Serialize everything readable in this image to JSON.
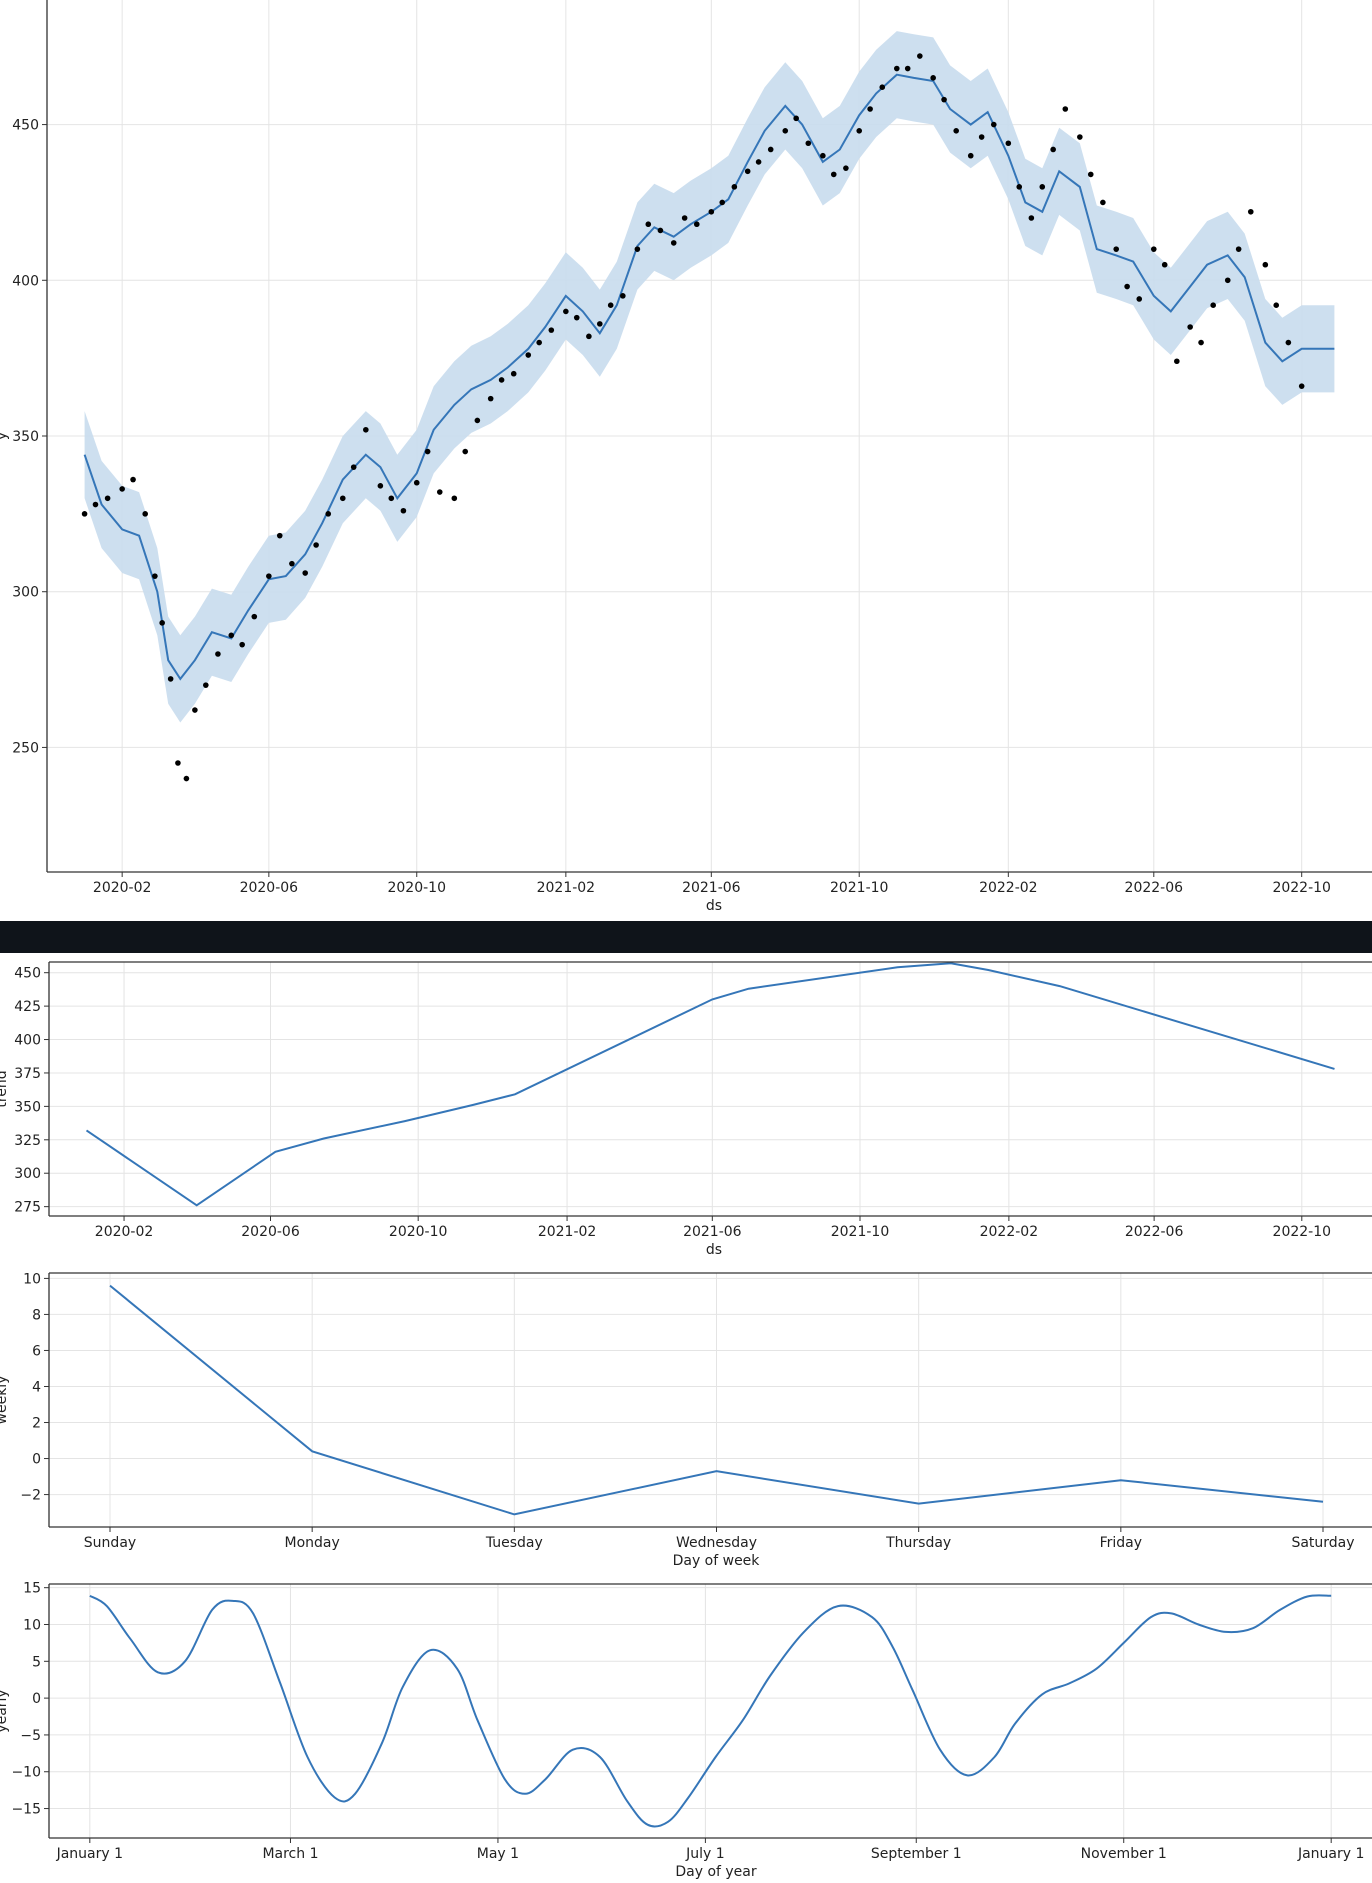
{
  "colors": {
    "line": "#3576b8",
    "band": "#c8dced",
    "points": "#000000",
    "grid": "#e4e4e4",
    "axis": "#333333",
    "divider": "#0f141a"
  },
  "chart_data": [
    {
      "id": "forecast",
      "type": "scatter+line",
      "title": "",
      "xlabel": "ds",
      "ylabel": "y",
      "x_ticks": [
        "2020-02",
        "2020-06",
        "2020-10",
        "2021-02",
        "2021-06",
        "2021-10",
        "2022-02",
        "2022-06",
        "2022-10"
      ],
      "y_ticks": [
        250,
        300,
        350,
        400,
        450
      ],
      "xlim": [
        "2019-12-01",
        "2022-11-28"
      ],
      "ylim": [
        210,
        490
      ],
      "grid": true,
      "series": [
        {
          "kind": "forecast_yhat",
          "x": [
            "2020-01-01",
            "2020-01-15",
            "2020-02-01",
            "2020-02-15",
            "2020-03-01",
            "2020-03-10",
            "2020-03-20",
            "2020-04-01",
            "2020-04-15",
            "2020-05-01",
            "2020-05-15",
            "2020-06-01",
            "2020-06-15",
            "2020-07-01",
            "2020-07-15",
            "2020-08-01",
            "2020-08-20",
            "2020-09-01",
            "2020-09-15",
            "2020-10-01",
            "2020-10-15",
            "2020-11-01",
            "2020-11-15",
            "2020-12-01",
            "2020-12-15",
            "2021-01-01",
            "2021-01-15",
            "2021-02-01",
            "2021-02-15",
            "2021-03-01",
            "2021-03-15",
            "2021-04-01",
            "2021-04-15",
            "2021-05-01",
            "2021-05-15",
            "2021-06-01",
            "2021-06-15",
            "2021-07-01",
            "2021-07-15",
            "2021-08-01",
            "2021-08-15",
            "2021-09-01",
            "2021-09-15",
            "2021-10-01",
            "2021-10-15",
            "2021-11-01",
            "2021-11-15",
            "2021-12-01",
            "2021-12-15",
            "2022-01-01",
            "2022-01-15",
            "2022-02-01",
            "2022-02-15",
            "2022-03-01",
            "2022-03-15",
            "2022-04-01",
            "2022-04-15",
            "2022-05-01",
            "2022-05-15",
            "2022-06-01",
            "2022-06-15",
            "2022-07-01",
            "2022-07-15",
            "2022-08-01",
            "2022-08-15",
            "2022-09-01",
            "2022-09-15",
            "2022-10-01",
            "2022-10-15",
            "2022-10-28"
          ],
          "y": [
            344,
            328,
            320,
            318,
            300,
            278,
            272,
            278,
            287,
            285,
            294,
            304,
            305,
            312,
            322,
            336,
            344,
            340,
            330,
            338,
            352,
            360,
            365,
            368,
            372,
            378,
            385,
            395,
            390,
            383,
            392,
            411,
            417,
            414,
            418,
            422,
            426,
            438,
            448,
            456,
            450,
            438,
            442,
            453,
            460,
            466,
            465,
            464,
            455,
            450,
            454,
            440,
            425,
            422,
            435,
            430,
            410,
            408,
            406,
            395,
            390,
            398,
            405,
            408,
            401,
            380,
            374,
            378,
            378,
            378
          ]
        },
        {
          "kind": "uncertainty_band",
          "x": [
            "2020-01-01",
            "2020-01-15",
            "2020-02-01",
            "2020-02-15",
            "2020-03-01",
            "2020-03-10",
            "2020-03-20",
            "2020-04-01",
            "2020-04-15",
            "2020-05-01",
            "2020-05-15",
            "2020-06-01",
            "2020-06-15",
            "2020-07-01",
            "2020-07-15",
            "2020-08-01",
            "2020-08-20",
            "2020-09-01",
            "2020-09-15",
            "2020-10-01",
            "2020-10-15",
            "2020-11-01",
            "2020-11-15",
            "2020-12-01",
            "2020-12-15",
            "2021-01-01",
            "2021-01-15",
            "2021-02-01",
            "2021-02-15",
            "2021-03-01",
            "2021-03-15",
            "2021-04-01",
            "2021-04-15",
            "2021-05-01",
            "2021-05-15",
            "2021-06-01",
            "2021-06-15",
            "2021-07-01",
            "2021-07-15",
            "2021-08-01",
            "2021-08-15",
            "2021-09-01",
            "2021-09-15",
            "2021-10-01",
            "2021-10-15",
            "2021-11-01",
            "2021-11-15",
            "2021-12-01",
            "2021-12-15",
            "2022-01-01",
            "2022-01-15",
            "2022-02-01",
            "2022-02-15",
            "2022-03-01",
            "2022-03-15",
            "2022-04-01",
            "2022-04-15",
            "2022-05-01",
            "2022-05-15",
            "2022-06-01",
            "2022-06-15",
            "2022-07-01",
            "2022-07-15",
            "2022-08-01",
            "2022-08-15",
            "2022-09-01",
            "2022-09-15",
            "2022-10-01",
            "2022-10-15",
            "2022-10-28"
          ],
          "lower": [
            330,
            314,
            306,
            304,
            286,
            264,
            258,
            264,
            273,
            271,
            280,
            290,
            291,
            298,
            308,
            322,
            330,
            326,
            316,
            324,
            338,
            346,
            351,
            354,
            358,
            364,
            371,
            381,
            376,
            369,
            378,
            397,
            403,
            400,
            404,
            408,
            412,
            424,
            434,
            442,
            436,
            424,
            428,
            439,
            446,
            452,
            451,
            450,
            441,
            436,
            440,
            426,
            411,
            408,
            421,
            416,
            396,
            394,
            392,
            381,
            376,
            384,
            391,
            394,
            387,
            366,
            360,
            364,
            364,
            364
          ],
          "upper": [
            358,
            342,
            334,
            332,
            314,
            292,
            286,
            292,
            301,
            299,
            308,
            318,
            319,
            326,
            336,
            350,
            358,
            354,
            344,
            352,
            366,
            374,
            379,
            382,
            386,
            392,
            399,
            409,
            404,
            397,
            406,
            425,
            431,
            428,
            432,
            436,
            440,
            452,
            462,
            470,
            464,
            452,
            456,
            467,
            474,
            480,
            479,
            478,
            469,
            464,
            468,
            454,
            439,
            436,
            449,
            444,
            424,
            422,
            420,
            409,
            404,
            412,
            419,
            422,
            415,
            394,
            388,
            392,
            392,
            392
          ]
        },
        {
          "kind": "observed_points",
          "note_free": true,
          "x": [
            "2020-01-01",
            "2020-01-10",
            "2020-01-20",
            "2020-02-01",
            "2020-02-10",
            "2020-02-20",
            "2020-02-28",
            "2020-03-05",
            "2020-03-12",
            "2020-03-18",
            "2020-03-25",
            "2020-04-01",
            "2020-04-10",
            "2020-04-20",
            "2020-05-01",
            "2020-05-10",
            "2020-05-20",
            "2020-06-01",
            "2020-06-10",
            "2020-06-20",
            "2020-07-01",
            "2020-07-10",
            "2020-07-20",
            "2020-08-01",
            "2020-08-10",
            "2020-08-20",
            "2020-09-01",
            "2020-09-10",
            "2020-09-20",
            "2020-10-01",
            "2020-10-10",
            "2020-10-20",
            "2020-11-01",
            "2020-11-10",
            "2020-11-20",
            "2020-12-01",
            "2020-12-10",
            "2020-12-20",
            "2021-01-01",
            "2021-01-10",
            "2021-01-20",
            "2021-02-01",
            "2021-02-10",
            "2021-02-20",
            "2021-03-01",
            "2021-03-10",
            "2021-03-20",
            "2021-04-01",
            "2021-04-10",
            "2021-04-20",
            "2021-05-01",
            "2021-05-10",
            "2021-05-20",
            "2021-06-01",
            "2021-06-10",
            "2021-06-20",
            "2021-07-01",
            "2021-07-10",
            "2021-07-20",
            "2021-08-01",
            "2021-08-10",
            "2021-08-20",
            "2021-09-01",
            "2021-09-10",
            "2021-09-20",
            "2021-10-01",
            "2021-10-10",
            "2021-10-20",
            "2021-11-01",
            "2021-11-10",
            "2021-11-20",
            "2021-12-01",
            "2021-12-10",
            "2021-12-20",
            "2022-01-01",
            "2022-01-10",
            "2022-01-20",
            "2022-02-01",
            "2022-02-10",
            "2022-02-20",
            "2022-03-01",
            "2022-03-10",
            "2022-03-20",
            "2022-04-01",
            "2022-04-10",
            "2022-04-20",
            "2022-05-01",
            "2022-05-10",
            "2022-05-20",
            "2022-06-01",
            "2022-06-10",
            "2022-06-20",
            "2022-07-01",
            "2022-07-10",
            "2022-07-20",
            "2022-08-01",
            "2022-08-10",
            "2022-08-20",
            "2022-09-01",
            "2022-09-10",
            "2022-09-20",
            "2022-10-01"
          ],
          "y": [
            325,
            328,
            330,
            333,
            336,
            325,
            305,
            290,
            272,
            245,
            240,
            262,
            270,
            280,
            286,
            283,
            292,
            305,
            318,
            309,
            306,
            315,
            325,
            330,
            340,
            352,
            334,
            330,
            326,
            335,
            345,
            332,
            330,
            345,
            355,
            362,
            368,
            370,
            376,
            380,
            384,
            390,
            388,
            382,
            386,
            392,
            395,
            410,
            418,
            416,
            412,
            420,
            418,
            422,
            425,
            430,
            435,
            438,
            442,
            448,
            452,
            444,
            440,
            434,
            436,
            448,
            455,
            462,
            468,
            468,
            472,
            465,
            458,
            448,
            440,
            446,
            450,
            444,
            430,
            420,
            430,
            442,
            455,
            446,
            434,
            425,
            410,
            398,
            394,
            410,
            405,
            374,
            385,
            380,
            392,
            400,
            410,
            422,
            405,
            392,
            380,
            366
          ]
        }
      ]
    },
    {
      "id": "trend",
      "type": "line",
      "title": "",
      "xlabel": "ds",
      "ylabel": "trend",
      "x_ticks": [
        "2020-02",
        "2020-06",
        "2020-10",
        "2021-02",
        "2021-06",
        "2021-10",
        "2022-02",
        "2022-06",
        "2022-10"
      ],
      "y_ticks": [
        275,
        300,
        325,
        350,
        375,
        400,
        425,
        450
      ],
      "xlim": [
        "2019-12-01",
        "2022-11-28"
      ],
      "ylim": [
        268,
        458
      ],
      "grid": true,
      "series": [
        {
          "x": [
            "2020-01-01",
            "2020-04-01",
            "2020-06-05",
            "2020-07-15",
            "2020-09-20",
            "2020-11-15",
            "2020-12-20",
            "2021-06-01",
            "2021-07-01",
            "2021-11-01",
            "2021-12-15",
            "2022-01-15",
            "2022-03-15",
            "2022-10-28"
          ],
          "y": [
            332,
            276,
            316,
            326,
            339,
            351,
            359,
            430,
            438,
            454,
            457,
            452,
            440,
            378
          ]
        }
      ]
    },
    {
      "id": "weekly",
      "type": "line",
      "title": "",
      "xlabel": "Day of week",
      "ylabel": "weekly",
      "categories": [
        "Sunday",
        "Monday",
        "Tuesday",
        "Wednesday",
        "Thursday",
        "Friday",
        "Saturday"
      ],
      "values": [
        9.6,
        0.4,
        -3.1,
        -0.7,
        -2.5,
        -1.2,
        -2.4
      ],
      "y_ticks": [
        -2,
        0,
        2,
        4,
        6,
        8,
        10
      ],
      "ylim": [
        -3.8,
        10.3
      ],
      "grid": true
    },
    {
      "id": "yearly",
      "type": "line",
      "title": "",
      "xlabel": "Day of year",
      "ylabel": "yearly",
      "x_ticks": [
        "January 1",
        "March 1",
        "May 1",
        "July 1",
        "September 1",
        "November 1",
        "January 1"
      ],
      "x_tick_days": [
        0,
        59,
        120,
        181,
        243,
        304,
        365
      ],
      "xlim": [
        -12,
        377
      ],
      "y_ticks": [
        -15,
        -10,
        -5,
        0,
        5,
        10,
        15
      ],
      "ylim": [
        -19,
        15.5
      ],
      "grid": true,
      "series": [
        {
          "x": [
            0,
            5,
            12,
            20,
            28,
            36,
            42,
            48,
            56,
            64,
            72,
            78,
            86,
            92,
            100,
            108,
            114,
            122,
            128,
            134,
            142,
            150,
            158,
            164,
            170,
            176,
            184,
            192,
            200,
            210,
            220,
            230,
            236,
            242,
            250,
            258,
            266,
            272,
            280,
            288,
            296,
            304,
            312,
            318,
            326,
            334,
            342,
            350,
            358,
            365
          ],
          "y": [
            13.9,
            12.5,
            8,
            3.5,
            5,
            12,
            13.2,
            11.5,
            2,
            -8,
            -13.5,
            -13,
            -6,
            1.5,
            6.5,
            4,
            -3,
            -11,
            -13,
            -11,
            -7,
            -8,
            -14,
            -17.2,
            -16.8,
            -13.5,
            -8,
            -3,
            3,
            9,
            12.5,
            11,
            7,
            1,
            -7,
            -10.5,
            -8,
            -3.5,
            0.5,
            2,
            4,
            7.5,
            11,
            11.5,
            10,
            9,
            9.5,
            12,
            13.8,
            13.9
          ]
        }
      ]
    }
  ]
}
